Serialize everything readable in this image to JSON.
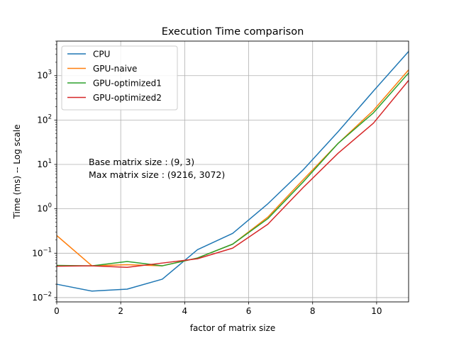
{
  "chart_data": {
    "type": "line",
    "title": "Execution Time comparison",
    "xlabel": "factor of matrix size",
    "ylabel": "Time (ms) -- Log scale",
    "xlim": [
      0,
      11
    ],
    "ylim": [
      0.008,
      6000
    ],
    "yscale": "log",
    "grid": true,
    "legend_position": "top-left",
    "x_ticks": [
      0,
      2,
      4,
      6,
      8,
      10
    ],
    "x_tick_labels": [
      "0",
      "2",
      "4",
      "6",
      "8",
      "10"
    ],
    "y_ticks": [
      0.01,
      0.1,
      1,
      10,
      100,
      1000
    ],
    "y_tick_labels": [
      {
        "base": "10",
        "exp": "−2"
      },
      {
        "base": "10",
        "exp": "−1"
      },
      {
        "base": "10",
        "exp": "0"
      },
      {
        "base": "10",
        "exp": "1"
      },
      {
        "base": "10",
        "exp": "2"
      },
      {
        "base": "10",
        "exp": "3"
      }
    ],
    "x": [
      0,
      1.1,
      2.2,
      3.3,
      4.4,
      5.5,
      6.6,
      7.7,
      8.8,
      9.9,
      11
    ],
    "series": [
      {
        "name": "CPU",
        "color": "#1f77b4",
        "values": [
          0.02,
          0.014,
          0.0155,
          0.026,
          0.12,
          0.28,
          1.3,
          7.5,
          55,
          450,
          3500
        ]
      },
      {
        "name": "GPU-naive",
        "color": "#ff7f0e",
        "values": [
          0.25,
          0.052,
          0.055,
          0.052,
          0.078,
          0.16,
          0.65,
          4.5,
          30,
          165,
          1350
        ]
      },
      {
        "name": "GPU-optimized1",
        "color": "#2ca02c",
        "values": [
          0.053,
          0.052,
          0.065,
          0.052,
          0.078,
          0.16,
          0.6,
          4.0,
          30,
          145,
          1150
        ]
      },
      {
        "name": "GPU-optimized2",
        "color": "#d62728",
        "values": [
          0.051,
          0.052,
          0.048,
          0.06,
          0.075,
          0.13,
          0.45,
          3.0,
          18,
          85,
          780
        ]
      }
    ],
    "annotations": [
      "Base matrix size : (9, 3)",
      "Max  matrix size : (9216, 3072)"
    ]
  }
}
